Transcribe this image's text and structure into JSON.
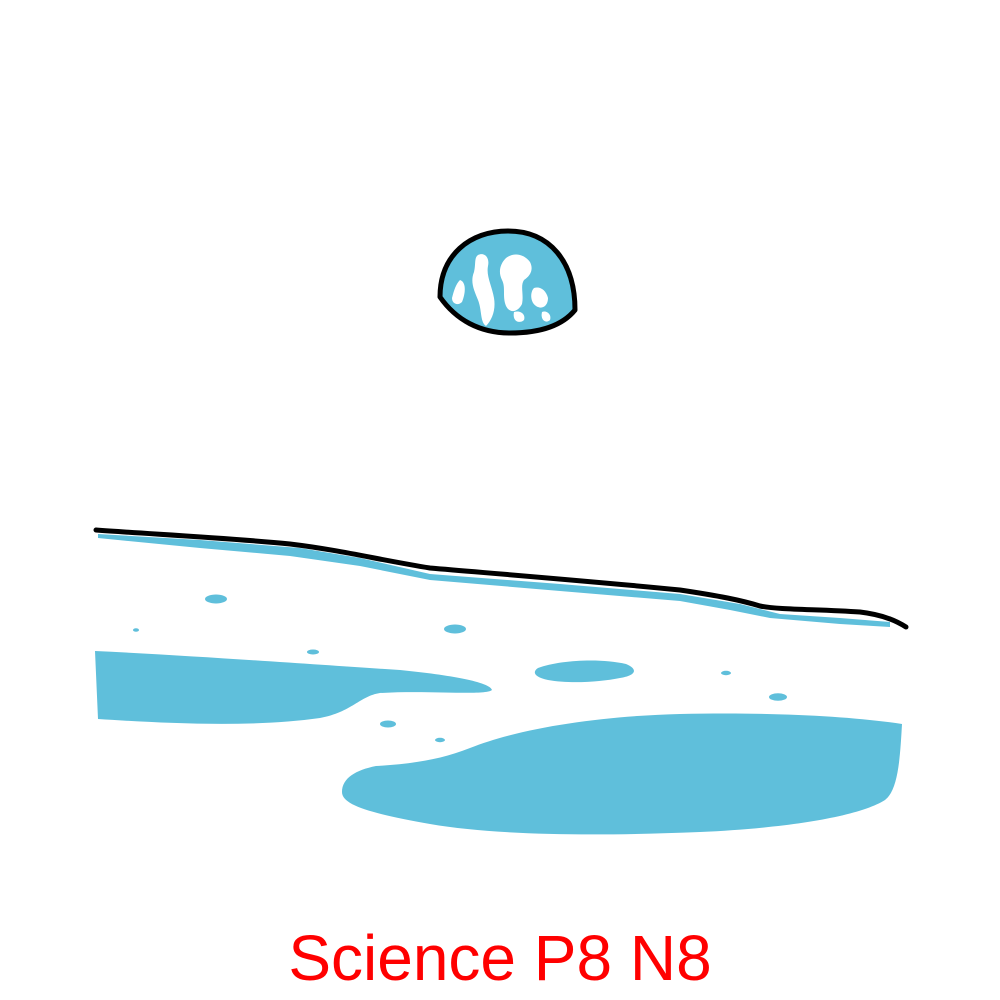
{
  "caption": {
    "text": "Science P8 N8",
    "color": "#ff0000"
  },
  "colors": {
    "accent_blue": "#5fbfdb",
    "outline": "#000000",
    "background": "#ffffff"
  },
  "scene": {
    "subject": "earth-icon",
    "ground": "lunar-surface"
  }
}
